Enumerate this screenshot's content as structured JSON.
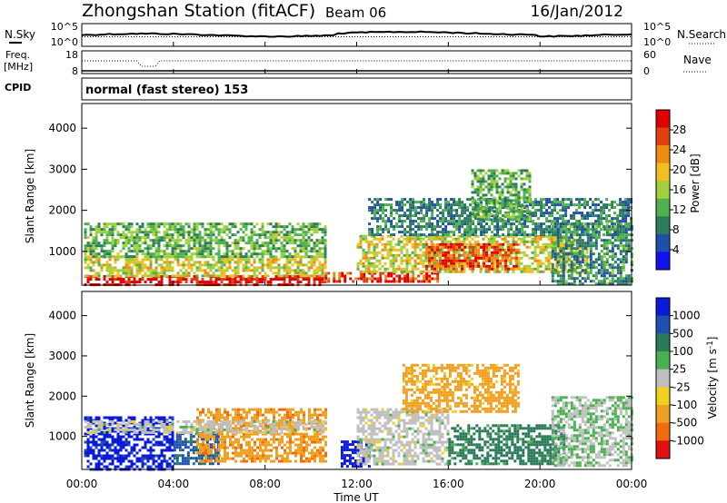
{
  "header": {
    "title": "Zhongshan Station (fitACF)",
    "beam": "Beam 06",
    "date": "16/Jan/2012"
  },
  "top_panels": {
    "nsky_label": "N.Sky",
    "nsearch_label": "N.Search",
    "nsky_ticks": [
      "10^5",
      "10^0"
    ],
    "nsearch_ticks": [
      "10^5",
      "10^0"
    ],
    "freq_label_line1": "Freq.",
    "freq_label_line2": "[MHz]",
    "freq_ticks": [
      "18",
      "8"
    ],
    "nave_label": "Nave",
    "nave_ticks": [
      "60",
      "0"
    ],
    "cpid_label": "CPID",
    "cpid_value": "normal (fast stereo) 153"
  },
  "x_axis": {
    "title": "Time UT",
    "ticks": [
      "00:00",
      "04:00",
      "08:00",
      "12:00",
      "16:00",
      "20:00",
      "00:00"
    ]
  },
  "colors": {
    "power_scale": [
      "#1010f0",
      "#1f4fa8",
      "#2e7d5a",
      "#4fb04f",
      "#9fd23a",
      "#f0c020",
      "#f08a10",
      "#e04010",
      "#e00000"
    ],
    "velocity_scale": [
      "#0a1ad8",
      "#1f4fb0",
      "#2a7a5a",
      "#49b04f",
      "#bfbfbf",
      "#f0d020",
      "#f0a020",
      "#f06a10",
      "#e01010"
    ]
  },
  "chart_data": [
    {
      "type": "heatmap",
      "panel": "power",
      "ylabel": "Slant Range [km]",
      "ylim": [
        180,
        4600
      ],
      "yticks": [
        "1000",
        "2000",
        "3000",
        "4000"
      ],
      "xlim_hours": [
        0,
        24
      ],
      "colorbar_label": "Power [dB]",
      "colorbar_ticks": [
        "4",
        "8",
        "12",
        "16",
        "20",
        "24",
        "28"
      ],
      "colorbar_range": [
        0,
        32
      ],
      "echo_regions": [
        {
          "t0": 0.1,
          "t1": 10.6,
          "r0": 200,
          "r1": 420,
          "value": 30
        },
        {
          "t0": 0.1,
          "t1": 10.6,
          "r0": 420,
          "r1": 900,
          "value": 18
        },
        {
          "t0": 0.1,
          "t1": 10.6,
          "r0": 900,
          "r1": 1700,
          "value": 13
        },
        {
          "t0": 10.6,
          "t1": 15.5,
          "r0": 250,
          "r1": 500,
          "value": 28
        },
        {
          "t0": 12.0,
          "t1": 22.0,
          "r0": 500,
          "r1": 1400,
          "value": 18
        },
        {
          "t0": 15.0,
          "t1": 19.0,
          "r0": 600,
          "r1": 1200,
          "value": 27
        },
        {
          "t0": 12.5,
          "t1": 24.0,
          "r0": 1400,
          "r1": 2300,
          "value": 9
        },
        {
          "t0": 17.0,
          "t1": 19.5,
          "r0": 1800,
          "r1": 3000,
          "value": 12
        },
        {
          "t0": 20.5,
          "t1": 24.0,
          "r0": 200,
          "r1": 1700,
          "value": 10
        }
      ]
    },
    {
      "type": "heatmap",
      "panel": "velocity",
      "ylabel": "Slant Range [km]",
      "ylim": [
        180,
        4600
      ],
      "yticks": [
        "1000",
        "2000",
        "3000",
        "4000"
      ],
      "xlim_hours": [
        0,
        24
      ],
      "colorbar_label": "Velocity [m s^-1]",
      "colorbar_ticks": [
        "1000",
        "500",
        "100",
        "25",
        "-25",
        "-100",
        "-500",
        "-1000"
      ],
      "echo_regions": [
        {
          "t0": 0.1,
          "t1": 4.0,
          "r0": 200,
          "r1": 1500,
          "value": 700
        },
        {
          "t0": 4.0,
          "t1": 6.0,
          "r0": 300,
          "r1": 1100,
          "value": 300
        },
        {
          "t0": 5.0,
          "t1": 10.6,
          "r0": 400,
          "r1": 1700,
          "value": -200
        },
        {
          "t0": 0.1,
          "t1": 10.6,
          "r0": 1100,
          "r1": 1400,
          "value": 0
        },
        {
          "t0": 11.3,
          "t1": 12.5,
          "r0": 250,
          "r1": 900,
          "value": 900
        },
        {
          "t0": 12.0,
          "t1": 16.0,
          "r0": 300,
          "r1": 1700,
          "value": 0
        },
        {
          "t0": 14.0,
          "t1": 19.0,
          "r0": 1600,
          "r1": 2800,
          "value": -150
        },
        {
          "t0": 16.0,
          "t1": 21.0,
          "r0": 300,
          "r1": 1300,
          "value": 150
        },
        {
          "t0": 20.5,
          "t1": 24.0,
          "r0": 300,
          "r1": 2000,
          "value": 20
        }
      ]
    }
  ]
}
